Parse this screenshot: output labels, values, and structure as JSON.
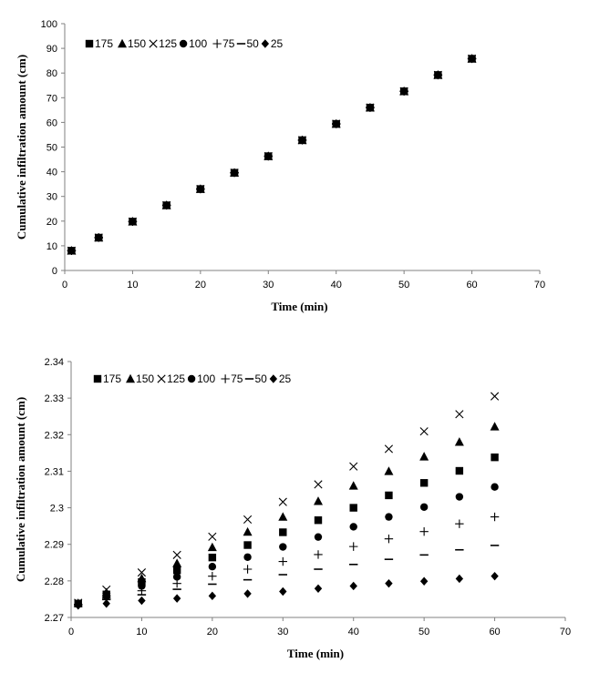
{
  "chart_data": [
    {
      "type": "scatter",
      "xlabel": "Time (min)",
      "ylabel": "Cumulative infiltration amount (cm)",
      "xlim": [
        0,
        70
      ],
      "ylim": [
        0,
        100
      ],
      "x_ticks": [
        "0",
        "10",
        "20",
        "30",
        "40",
        "50",
        "60",
        "70"
      ],
      "y_ticks": [
        "0",
        "10",
        "20",
        "30",
        "40",
        "50",
        "60",
        "70",
        "80",
        "90",
        "100"
      ],
      "grid": false,
      "legend_position": "top-left",
      "x": [
        1,
        5,
        10,
        15,
        20,
        25,
        30,
        35,
        40,
        45,
        50,
        55,
        60
      ],
      "series": [
        {
          "name": "175",
          "marker": "square",
          "values": [
            8.0,
            13.3,
            19.8,
            26.4,
            33.0,
            39.6,
            46.3,
            52.8,
            59.4,
            66.0,
            72.6,
            79.2,
            85.8
          ]
        },
        {
          "name": "150",
          "marker": "triangle",
          "values": [
            8.0,
            13.3,
            19.8,
            26.4,
            33.0,
            39.6,
            46.3,
            52.8,
            59.4,
            66.0,
            72.6,
            79.2,
            85.8
          ]
        },
        {
          "name": "125",
          "marker": "cross",
          "values": [
            8.0,
            13.3,
            19.8,
            26.4,
            33.0,
            39.6,
            46.3,
            52.8,
            59.4,
            66.0,
            72.6,
            79.2,
            85.8
          ]
        },
        {
          "name": "100",
          "marker": "circle",
          "values": [
            8.0,
            13.3,
            19.8,
            26.4,
            33.0,
            39.6,
            46.3,
            52.8,
            59.4,
            66.0,
            72.6,
            79.2,
            85.8
          ]
        },
        {
          "name": "75",
          "marker": "plus",
          "values": [
            8.0,
            13.3,
            19.8,
            26.4,
            33.0,
            39.6,
            46.3,
            52.8,
            59.4,
            66.0,
            72.6,
            79.2,
            85.8
          ]
        },
        {
          "name": "50",
          "marker": "dash",
          "values": [
            8.0,
            13.3,
            19.8,
            26.4,
            33.0,
            39.6,
            46.3,
            52.8,
            59.4,
            66.0,
            72.6,
            79.2,
            85.8
          ]
        },
        {
          "name": "25",
          "marker": "diamond",
          "values": [
            8.0,
            13.3,
            19.8,
            26.4,
            33.0,
            39.6,
            46.3,
            52.8,
            59.4,
            66.0,
            72.6,
            79.2,
            85.8
          ]
        }
      ]
    },
    {
      "type": "scatter",
      "xlabel": "Time (min)",
      "ylabel": "Cumulative infiltration amount (cm)",
      "xlim": [
        0,
        70
      ],
      "ylim": [
        2.27,
        2.34
      ],
      "x_ticks": [
        "0",
        "10",
        "20",
        "30",
        "40",
        "50",
        "60",
        "70"
      ],
      "y_ticks": [
        "2.27",
        "2.28",
        "2.29",
        "2.3",
        "2.31",
        "2.32",
        "2.33",
        "2.34"
      ],
      "grid": false,
      "legend_position": "top-left",
      "x": [
        1,
        5,
        10,
        15,
        20,
        25,
        30,
        35,
        40,
        45,
        50,
        55,
        60
      ],
      "series": [
        {
          "name": "175",
          "marker": "square",
          "values": [
            2.2738,
            2.2763,
            2.2797,
            2.2829,
            2.2864,
            2.2898,
            2.2933,
            2.2966,
            2.3,
            2.3034,
            2.3068,
            2.3101,
            2.3138
          ]
        },
        {
          "name": "150",
          "marker": "triangle",
          "values": [
            2.2739,
            2.2768,
            2.2807,
            2.2848,
            2.2892,
            2.2934,
            2.2975,
            2.3018,
            2.306,
            2.31,
            2.314,
            2.318,
            2.3222
          ]
        },
        {
          "name": "125",
          "marker": "cross",
          "values": [
            2.274,
            2.2776,
            2.2823,
            2.2871,
            2.2921,
            2.2968,
            2.3016,
            2.3064,
            2.3113,
            2.3161,
            2.3209,
            2.3256,
            2.3305
          ]
        },
        {
          "name": "100",
          "marker": "circle",
          "values": [
            2.2736,
            2.2758,
            2.2786,
            2.2811,
            2.2839,
            2.2865,
            2.2893,
            2.292,
            2.2948,
            2.2975,
            2.3002,
            2.303,
            2.3057
          ]
        },
        {
          "name": "75",
          "marker": "plus",
          "values": [
            2.2735,
            2.2753,
            2.2773,
            2.2793,
            2.2813,
            2.2832,
            2.2853,
            2.2872,
            2.2894,
            2.2915,
            2.2935,
            2.2956,
            2.2975
          ]
        },
        {
          "name": "50",
          "marker": "dash",
          "values": [
            2.2735,
            2.2749,
            2.2762,
            2.2777,
            2.2791,
            2.2803,
            2.2817,
            2.2832,
            2.2845,
            2.2859,
            2.2871,
            2.2885,
            2.2897
          ]
        },
        {
          "name": "25",
          "marker": "diamond",
          "values": [
            2.2733,
            2.2738,
            2.2746,
            2.2752,
            2.2759,
            2.2765,
            2.2771,
            2.2779,
            2.2786,
            2.2793,
            2.2799,
            2.2806,
            2.2813
          ]
        }
      ]
    }
  ]
}
